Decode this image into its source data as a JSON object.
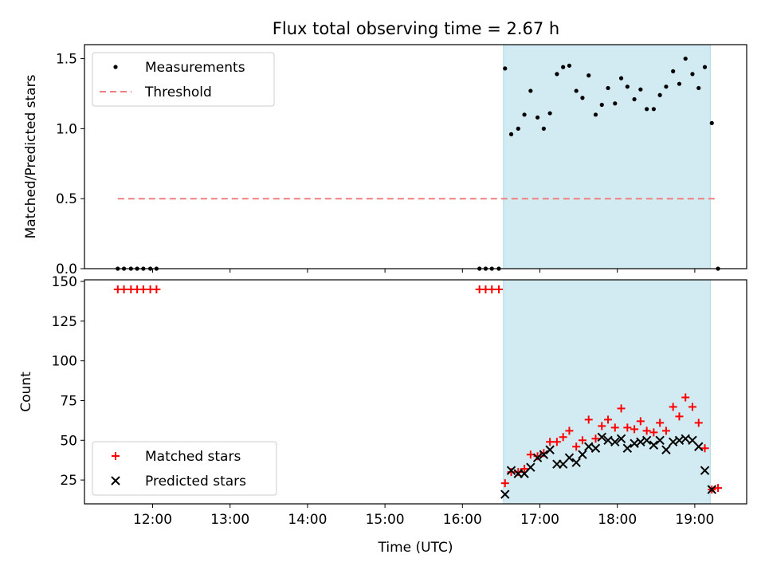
{
  "title": "Flux total observing time = 2.67 h",
  "colors": {
    "shade": "#add8e6",
    "measurement": "#000000",
    "threshold": "#f08080",
    "matched": "#ff0000",
    "predicted": "#000000"
  },
  "chart_data": [
    {
      "type": "scatter",
      "panel": "top",
      "ylabel": "Matched/Predicted stars",
      "xlim": [
        11.12,
        19.67
      ],
      "ylim": [
        0,
        1.6
      ],
      "yticks": [
        0.0,
        0.5,
        1.0,
        1.5
      ],
      "ytick_labels": [
        "0.0",
        "0.5",
        "1.0",
        "1.5"
      ],
      "shaded_x_range": [
        16.53,
        19.2
      ],
      "legend": {
        "position": "top-left",
        "labels": [
          "Measurements",
          "Threshold"
        ]
      },
      "series": [
        {
          "name": "Measurements",
          "marker": "dot",
          "x": [
            11.55,
            11.63,
            11.72,
            11.8,
            11.88,
            11.97,
            12.05,
            16.22,
            16.3,
            16.38,
            16.47,
            16.55,
            16.63,
            16.72,
            16.8,
            16.88,
            16.97,
            17.05,
            17.13,
            17.22,
            17.3,
            17.38,
            17.47,
            17.55,
            17.63,
            17.72,
            17.8,
            17.88,
            17.97,
            18.05,
            18.13,
            18.22,
            18.3,
            18.38,
            18.47,
            18.55,
            18.63,
            18.72,
            18.8,
            18.88,
            18.97,
            19.05,
            19.13,
            19.22,
            19.3
          ],
          "y": [
            0,
            0,
            0,
            0,
            0,
            0,
            0,
            0,
            0,
            0,
            0,
            1.43,
            0.96,
            1.0,
            1.1,
            1.27,
            1.08,
            1.0,
            1.11,
            1.39,
            1.44,
            1.45,
            1.27,
            1.22,
            1.38,
            1.1,
            1.17,
            1.29,
            1.18,
            1.36,
            1.3,
            1.21,
            1.28,
            1.14,
            1.14,
            1.24,
            1.3,
            1.41,
            1.32,
            1.5,
            1.39,
            1.29,
            1.44,
            1.04,
            0
          ]
        },
        {
          "name": "Threshold",
          "style": "dashed",
          "x": [
            11.55,
            19.3
          ],
          "y": [
            0.5,
            0.5
          ]
        }
      ]
    },
    {
      "type": "scatter",
      "panel": "bottom",
      "xlabel": "Time (UTC)",
      "ylabel": "Count",
      "xlim": [
        11.12,
        19.67
      ],
      "ylim": [
        10,
        151
      ],
      "xticks": [
        12,
        13,
        14,
        15,
        16,
        17,
        18,
        19
      ],
      "xtick_labels": [
        "12:00",
        "13:00",
        "14:00",
        "15:00",
        "16:00",
        "17:00",
        "18:00",
        "19:00"
      ],
      "yticks": [
        25,
        50,
        75,
        100,
        125,
        150
      ],
      "ytick_labels": [
        "25",
        "50",
        "75",
        "100",
        "125",
        "150"
      ],
      "shaded_x_range": [
        16.53,
        19.2
      ],
      "legend": {
        "position": "bottom-left",
        "labels": [
          "Matched stars",
          "Predicted stars"
        ]
      },
      "series": [
        {
          "name": "Matched stars",
          "marker": "plus",
          "x": [
            11.55,
            11.63,
            11.72,
            11.8,
            11.88,
            11.97,
            12.05,
            16.22,
            16.3,
            16.38,
            16.47,
            16.55,
            16.63,
            16.72,
            16.8,
            16.88,
            16.97,
            17.05,
            17.13,
            17.22,
            17.3,
            17.38,
            17.47,
            17.55,
            17.63,
            17.72,
            17.8,
            17.88,
            17.97,
            18.05,
            18.13,
            18.22,
            18.3,
            18.38,
            18.47,
            18.55,
            18.63,
            18.72,
            18.8,
            18.88,
            18.97,
            19.05,
            19.13,
            19.22,
            19.3
          ],
          "y": [
            145,
            145,
            145,
            145,
            145,
            145,
            145,
            145,
            145,
            145,
            145,
            23,
            30,
            30,
            32,
            41,
            40,
            42,
            49,
            49,
            52,
            56,
            46,
            50,
            63,
            51,
            59,
            63,
            58,
            70,
            58,
            57,
            62,
            56,
            55,
            61,
            56,
            71,
            65,
            77,
            71,
            61,
            45,
            19,
            20
          ]
        },
        {
          "name": "Predicted stars",
          "marker": "x",
          "x": [
            16.55,
            16.63,
            16.72,
            16.8,
            16.88,
            16.97,
            17.05,
            17.13,
            17.22,
            17.3,
            17.38,
            17.47,
            17.55,
            17.63,
            17.72,
            17.8,
            17.88,
            17.97,
            18.05,
            18.13,
            18.22,
            18.3,
            18.38,
            18.47,
            18.55,
            18.63,
            18.72,
            18.8,
            18.88,
            18.97,
            19.05,
            19.13,
            19.22
          ],
          "y": [
            16,
            31,
            29,
            29,
            33,
            39,
            41,
            44,
            35,
            35,
            39,
            36,
            41,
            46,
            45,
            52,
            50,
            49,
            51,
            45,
            48,
            49,
            50,
            47,
            50,
            44,
            49,
            50,
            51,
            50,
            46,
            31,
            19
          ]
        }
      ]
    }
  ]
}
